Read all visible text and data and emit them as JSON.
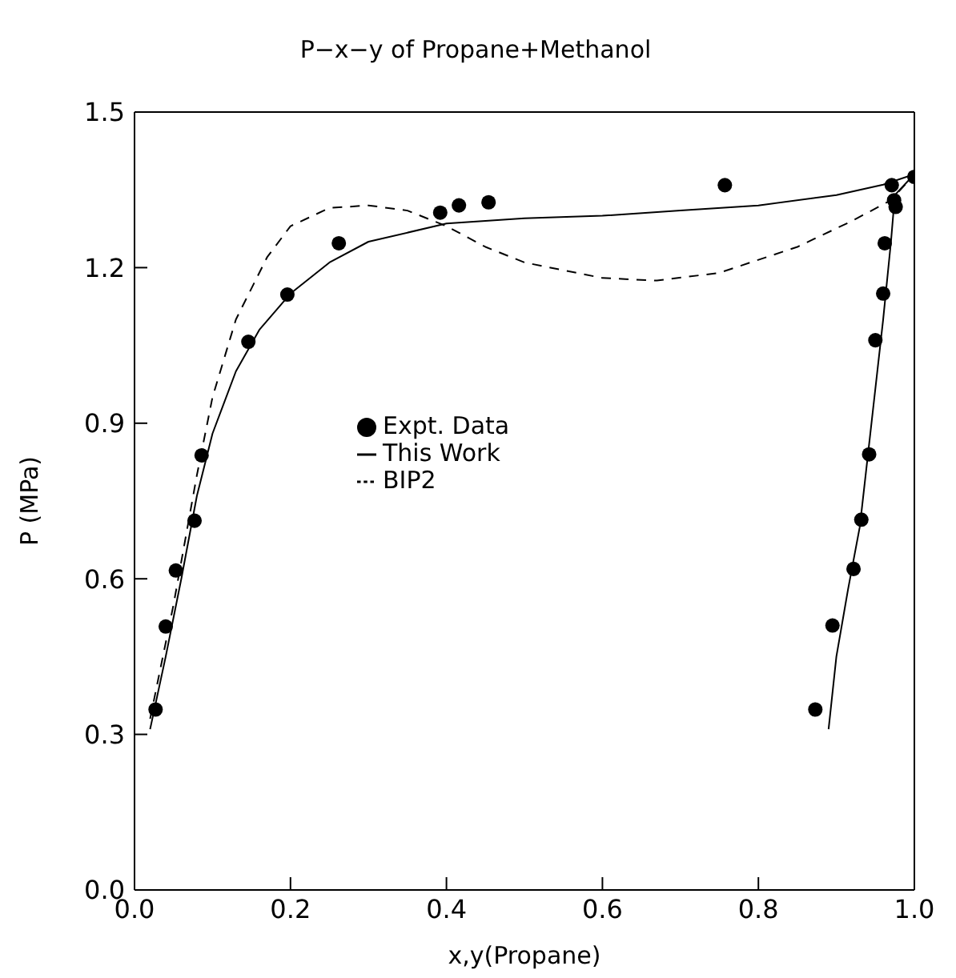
{
  "chart_data": {
    "type": "line",
    "title": "P−x−y of Propane+Methanol",
    "xlabel": "x,y(Propane)",
    "ylabel": "P (MPa)",
    "xlim": [
      0,
      1
    ],
    "xticks": [
      {
        "value": 0,
        "label": "0.0"
      },
      {
        "value": 0.2,
        "label": "0.2"
      },
      {
        "value": 0.4,
        "label": "0.4"
      },
      {
        "value": 0.6,
        "label": "0.6"
      },
      {
        "value": 0.8,
        "label": "0.8"
      },
      {
        "value": 1,
        "label": "1.0"
      }
    ],
    "ylim": [
      0,
      1.5
    ],
    "yticks": [
      {
        "value": 0,
        "label": "0.0"
      },
      {
        "value": 0.3,
        "label": "0.3"
      },
      {
        "value": 0.6,
        "label": "0.6"
      },
      {
        "value": 0.9,
        "label": "0.9"
      },
      {
        "value": 1.2,
        "label": "1.2"
      },
      {
        "value": 1.5,
        "label": "1.5"
      }
    ],
    "grid": false,
    "legend": "center",
    "series": [
      {
        "name": "Expt. Data",
        "type": "scatter",
        "marker": "circle",
        "color": "#000000",
        "x": [
          0.027,
          0.04,
          0.053,
          0.077,
          0.086,
          0.146,
          0.196,
          0.262,
          0.392,
          0.416,
          0.454,
          0.757,
          0.971,
          1.0,
          0.976,
          0.974,
          0.962,
          0.96,
          0.95,
          0.942,
          0.932,
          0.922,
          0.895,
          0.873
        ],
        "values": [
          0.348,
          0.508,
          0.616,
          0.712,
          0.838,
          1.057,
          1.148,
          1.247,
          1.306,
          1.32,
          1.326,
          1.359,
          1.359,
          1.375,
          1.317,
          1.33,
          1.247,
          1.15,
          1.06,
          0.84,
          0.714,
          0.619,
          0.51,
          0.348
        ]
      },
      {
        "name": "This Work",
        "line_style": "solid",
        "color": "#000000",
        "x": [
          0.02,
          0.04,
          0.06,
          0.08,
          0.1,
          0.13,
          0.16,
          0.2,
          0.25,
          0.3,
          0.4,
          0.5,
          0.6,
          0.7,
          0.8,
          0.9,
          0.96,
          1.0,
          0.975,
          0.97,
          0.96,
          0.945,
          0.93,
          0.915,
          0.9,
          0.89
        ],
        "values": [
          0.31,
          0.45,
          0.6,
          0.76,
          0.88,
          1.0,
          1.08,
          1.15,
          1.21,
          1.25,
          1.285,
          1.295,
          1.3,
          1.31,
          1.32,
          1.34,
          1.36,
          1.38,
          1.34,
          1.25,
          1.1,
          0.9,
          0.7,
          0.58,
          0.45,
          0.31
        ]
      },
      {
        "name": "BIP2",
        "line_style": "dashed",
        "color": "#000000",
        "x": [
          0.02,
          0.05,
          0.08,
          0.1,
          0.13,
          0.17,
          0.2,
          0.25,
          0.3,
          0.35,
          0.4,
          0.45,
          0.5,
          0.6,
          0.67,
          0.75,
          0.85,
          0.92,
          0.97,
          1.0
        ],
        "values": [
          0.33,
          0.55,
          0.8,
          0.95,
          1.1,
          1.22,
          1.28,
          1.315,
          1.32,
          1.31,
          1.28,
          1.24,
          1.21,
          1.18,
          1.175,
          1.19,
          1.24,
          1.29,
          1.33,
          1.38
        ]
      }
    ]
  }
}
